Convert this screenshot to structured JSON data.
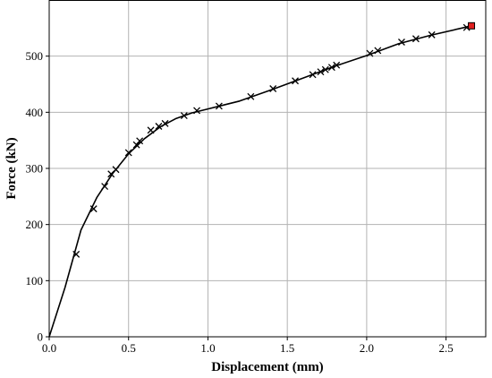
{
  "chart_data": {
    "type": "line",
    "title": "",
    "xlabel": "Displacement (mm)",
    "ylabel": "Force (kN)",
    "xlim": [
      0.0,
      2.75
    ],
    "ylim": [
      0,
      600
    ],
    "x_ticks": [
      "0.0",
      "0.5",
      "1.0",
      "1.5",
      "2.0",
      "2.5"
    ],
    "y_ticks": [
      "0",
      "100",
      "200",
      "300",
      "400",
      "500"
    ],
    "grid": true,
    "legend": "none",
    "line_color": "#000000",
    "end_marker_color": "#e02020",
    "curve": {
      "x": [
        0.0,
        0.1,
        0.2,
        0.3,
        0.4,
        0.5,
        0.6,
        0.7,
        0.8,
        0.9,
        1.0,
        1.2,
        1.4,
        1.6,
        1.8,
        2.0,
        2.2,
        2.4,
        2.6,
        2.66
      ],
      "y": [
        0,
        88,
        190,
        248,
        291,
        326,
        353,
        374,
        389,
        399,
        406,
        420,
        440,
        461,
        482,
        501,
        522,
        537,
        550,
        554
      ]
    },
    "cross_markers": {
      "x": [
        0.17,
        0.28,
        0.35,
        0.39,
        0.42,
        0.5,
        0.55,
        0.57,
        0.64,
        0.69,
        0.73,
        0.85,
        0.93,
        1.07,
        1.27,
        1.41,
        1.55,
        1.66,
        1.71,
        1.74,
        1.78,
        1.81,
        2.02,
        2.07,
        2.22,
        2.31,
        2.41,
        2.63
      ],
      "y": [
        147,
        228,
        268,
        290,
        298,
        328,
        342,
        349,
        368,
        375,
        380,
        394,
        403,
        411,
        428,
        442,
        456,
        467,
        472,
        476,
        480,
        484,
        505,
        510,
        525,
        531,
        538,
        551
      ]
    },
    "end_point": {
      "x": 2.66,
      "y": 554
    }
  }
}
